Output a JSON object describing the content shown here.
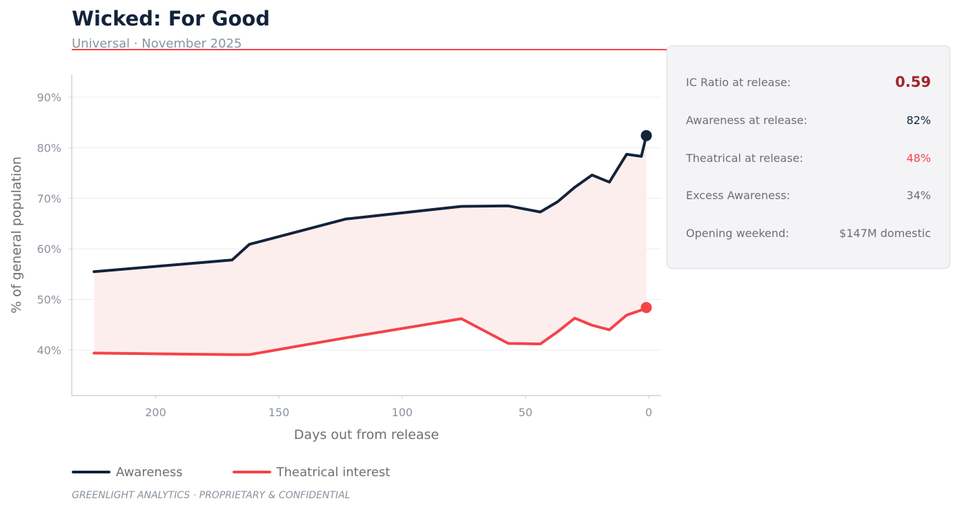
{
  "header": {
    "title": "Wicked: For Good",
    "subtitle": "Universal  ·  November 2025"
  },
  "colors": {
    "awareness": "#12233a",
    "theatrical": "#f4434a",
    "band_fill": "#fdeeee",
    "ic_ratio": "#a3242c",
    "accent_rule": "#f4434a",
    "axis_text": "#8a939e",
    "label_text": "#6b6f76"
  },
  "stats": {
    "ic_ratio": {
      "label": "IC Ratio at release:",
      "value": "0.59"
    },
    "awareness": {
      "label": "Awareness at release:",
      "value": "82%"
    },
    "theatrical": {
      "label": "Theatrical at release:",
      "value": "48%"
    },
    "excess": {
      "label": "Excess Awareness:",
      "value": "34%"
    },
    "opening": {
      "label": "Opening weekend:",
      "value": "$147M domestic"
    }
  },
  "footer": "GREENLIGHT ANALYTICS  ·  PROPRIETARY & CONFIDENTIAL",
  "chart_data": {
    "type": "line",
    "xlabel": "Days out from release",
    "ylabel": "% of general population",
    "xlim": [
      234,
      -5
    ],
    "ylim": [
      31,
      94.5
    ],
    "x_ticks": [
      200,
      150,
      100,
      50,
      0
    ],
    "y_ticks": [
      40,
      50,
      60,
      70,
      80,
      90
    ],
    "y_tick_suffix": "%",
    "grid": "horizontal",
    "legend": "bottom",
    "shaded_gap": true,
    "series": [
      {
        "name": "Awareness",
        "color_key": "awareness",
        "x": [
          225,
          169,
          162,
          123,
          76,
          57,
          44,
          37,
          30,
          23,
          16,
          9,
          3,
          1
        ],
        "y": [
          55.5,
          57.8,
          60.9,
          65.9,
          68.4,
          68.5,
          67.3,
          69.3,
          72.2,
          74.6,
          73.2,
          78.7,
          78.3,
          82.4
        ],
        "end_marker": true
      },
      {
        "name": "Theatrical interest",
        "color_key": "theatrical",
        "x": [
          225,
          169,
          162,
          123,
          76,
          57,
          44,
          37,
          30,
          23,
          16,
          9,
          3,
          1
        ],
        "y": [
          39.4,
          39.1,
          39.1,
          42.4,
          46.2,
          41.3,
          41.2,
          43.6,
          46.3,
          44.9,
          44.0,
          46.9,
          47.9,
          48.4
        ],
        "end_marker": true
      }
    ]
  }
}
